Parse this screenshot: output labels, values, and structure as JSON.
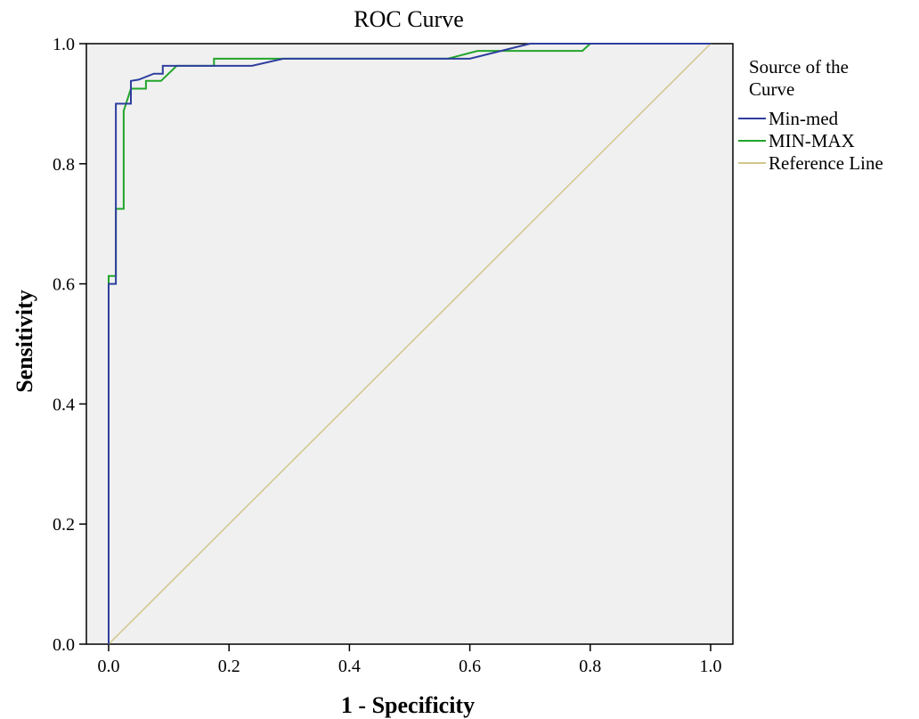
{
  "chart_data": {
    "type": "line",
    "title": "ROC Curve",
    "xlabel": "1 - Specificity",
    "ylabel": "Sensitivity",
    "xlim": [
      0.0,
      1.0
    ],
    "ylim": [
      0.0,
      1.0
    ],
    "x_ticks": [
      "0.0",
      "0.2",
      "0.4",
      "0.6",
      "0.8",
      "1.0"
    ],
    "y_ticks": [
      "0.0",
      "0.2",
      "0.4",
      "0.6",
      "0.8",
      "1.0"
    ],
    "grid": false,
    "background_color": "#f0f0f0",
    "legend": {
      "title": "Source of the Curve",
      "title_lines": [
        "Source of the",
        "Curve"
      ],
      "position": "right",
      "entries": [
        "Min-med",
        "MIN-MAX",
        "Reference Line"
      ]
    },
    "series": [
      {
        "name": "Min-med",
        "color": "#2e3f9e",
        "points": [
          [
            0,
            0
          ],
          [
            0,
            0.6
          ],
          [
            0.012,
            0.6
          ],
          [
            0.012,
            0.9
          ],
          [
            0.037,
            0.9
          ],
          [
            0.037,
            0.938
          ],
          [
            0.05,
            0.94
          ],
          [
            0.075,
            0.95
          ],
          [
            0.09,
            0.95
          ],
          [
            0.09,
            0.963
          ],
          [
            0.113,
            0.963
          ],
          [
            0.113,
            0.963
          ],
          [
            0.238,
            0.963
          ],
          [
            0.29,
            0.975
          ],
          [
            0.6,
            0.975
          ],
          [
            0.7,
            1.0
          ],
          [
            1.0,
            1.0
          ]
        ]
      },
      {
        "name": "MIN-MAX",
        "color": "#21a52a",
        "points": [
          [
            0,
            0
          ],
          [
            0,
            0.613
          ],
          [
            0.012,
            0.613
          ],
          [
            0.012,
            0.725
          ],
          [
            0.025,
            0.725
          ],
          [
            0.025,
            0.888
          ],
          [
            0.037,
            0.925
          ],
          [
            0.062,
            0.925
          ],
          [
            0.062,
            0.938
          ],
          [
            0.087,
            0.938
          ],
          [
            0.113,
            0.963
          ],
          [
            0.175,
            0.963
          ],
          [
            0.175,
            0.975
          ],
          [
            0.563,
            0.975
          ],
          [
            0.613,
            0.988
          ],
          [
            0.787,
            0.988
          ],
          [
            0.8,
            1.0
          ],
          [
            1.0,
            1.0
          ]
        ]
      },
      {
        "name": "Reference Line",
        "color": "#d2c68c",
        "points": [
          [
            0,
            0
          ],
          [
            1,
            1
          ]
        ]
      }
    ]
  }
}
